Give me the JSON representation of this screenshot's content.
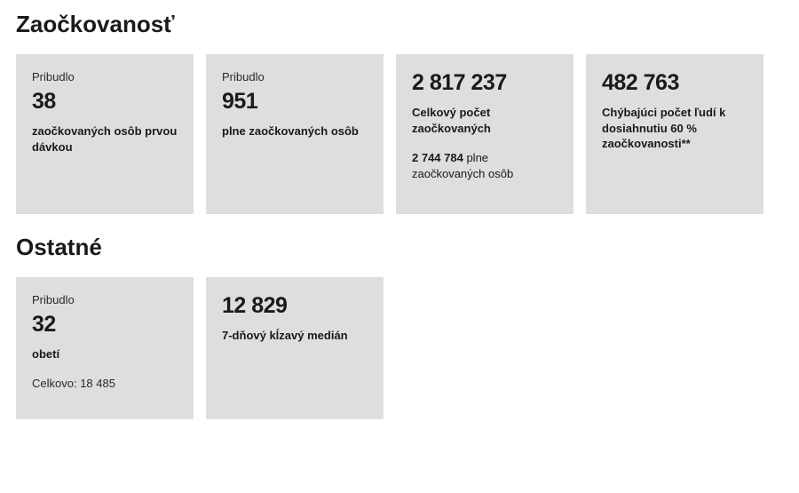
{
  "colors": {
    "card_bg": "#dedede",
    "page_bg": "#ffffff",
    "text": "#1a1a1a"
  },
  "typography": {
    "title_fontsize": 26,
    "big_number_fontsize": 25,
    "label_fontsize": 13
  },
  "sections": {
    "vaccination": {
      "title": "Zaočkovanosť",
      "cards": [
        {
          "prefix": "Pribudlo",
          "value": "38",
          "label": "zaočkovaných osôb prvou dávkou"
        },
        {
          "prefix": "Pribudlo",
          "value": "951",
          "label": "plne zaočkovaných osôb"
        },
        {
          "value": "2 817 237",
          "label": "Celkový počet zaočkovaných",
          "sub_value": "2 744 784",
          "sub_text": " plne zaočkovaných osôb"
        },
        {
          "value": "482 763",
          "label": "Chýbajúci počet ľudí k dosiahnutiu 60 % zaočkovanosti**"
        }
      ]
    },
    "other": {
      "title": "Ostatné",
      "cards": [
        {
          "prefix": "Pribudlo",
          "value": "32",
          "label": "obetí",
          "total_prefix": "Celkovo: ",
          "total_value": "18 485"
        },
        {
          "value": "12 829",
          "label": "7-dňový kĺzavý medián"
        }
      ]
    }
  }
}
